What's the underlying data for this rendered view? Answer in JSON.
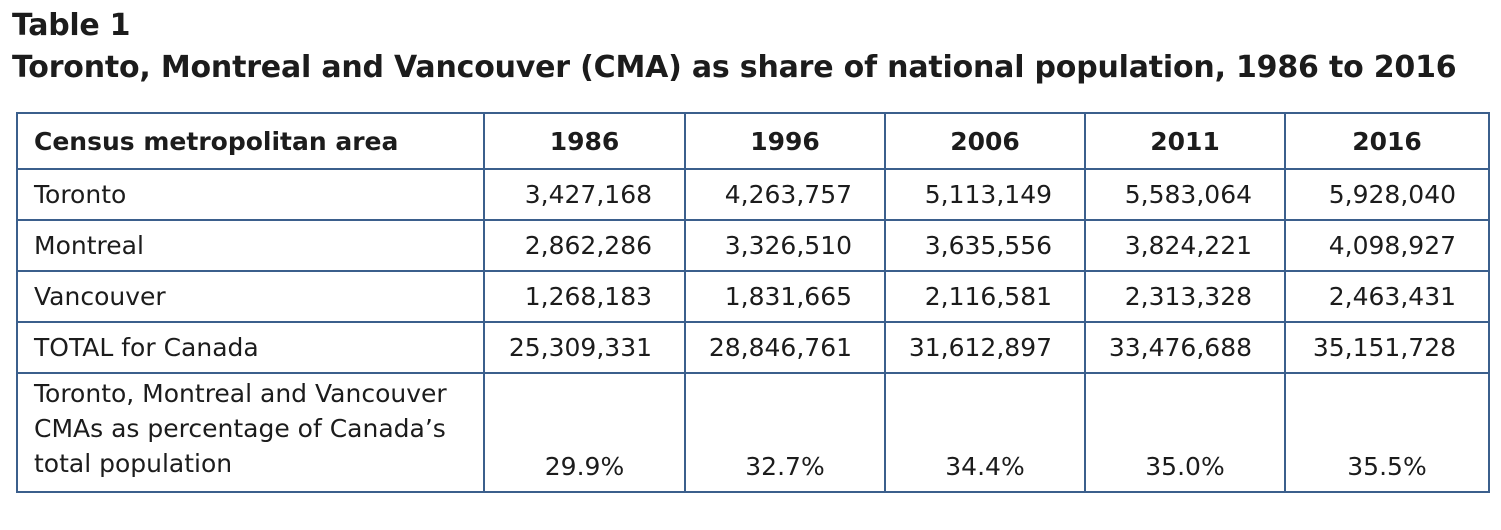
{
  "heading": {
    "label": "Table 1",
    "title": "Toronto, Montreal and Vancouver (CMA) as share of national population, 1986 to 2016"
  },
  "table": {
    "columns": [
      "Census metropolitan area",
      "1986",
      "1996",
      "2006",
      "2011",
      "2016"
    ],
    "rows": [
      {
        "label": "Toronto",
        "values": [
          "3,427,168",
          "4,263,757",
          "5,113,149",
          "5,583,064",
          "5,928,040"
        ]
      },
      {
        "label": "Montreal",
        "values": [
          "2,862,286",
          "3,326,510",
          "3,635,556",
          "3,824,221",
          "4,098,927"
        ]
      },
      {
        "label": "Vancouver",
        "values": [
          "1,268,183",
          "1,831,665",
          "2,116,581",
          "2,313,328",
          "2,463,431"
        ]
      },
      {
        "label": "TOTAL for Canada",
        "values": [
          "25,309,331",
          "28,846,761",
          "31,612,897",
          "33,476,688",
          "35,151,728"
        ]
      }
    ],
    "percentage_row": {
      "label": "Toronto, Montreal and Vancouver CMAs as percentage of Canada’s total population",
      "values": [
        "29.9%",
        "32.7%",
        "34.4%",
        "35.0%",
        "35.5%"
      ]
    }
  },
  "colors": {
    "border": "#3b5f8c",
    "text": "#1c1c1c"
  }
}
